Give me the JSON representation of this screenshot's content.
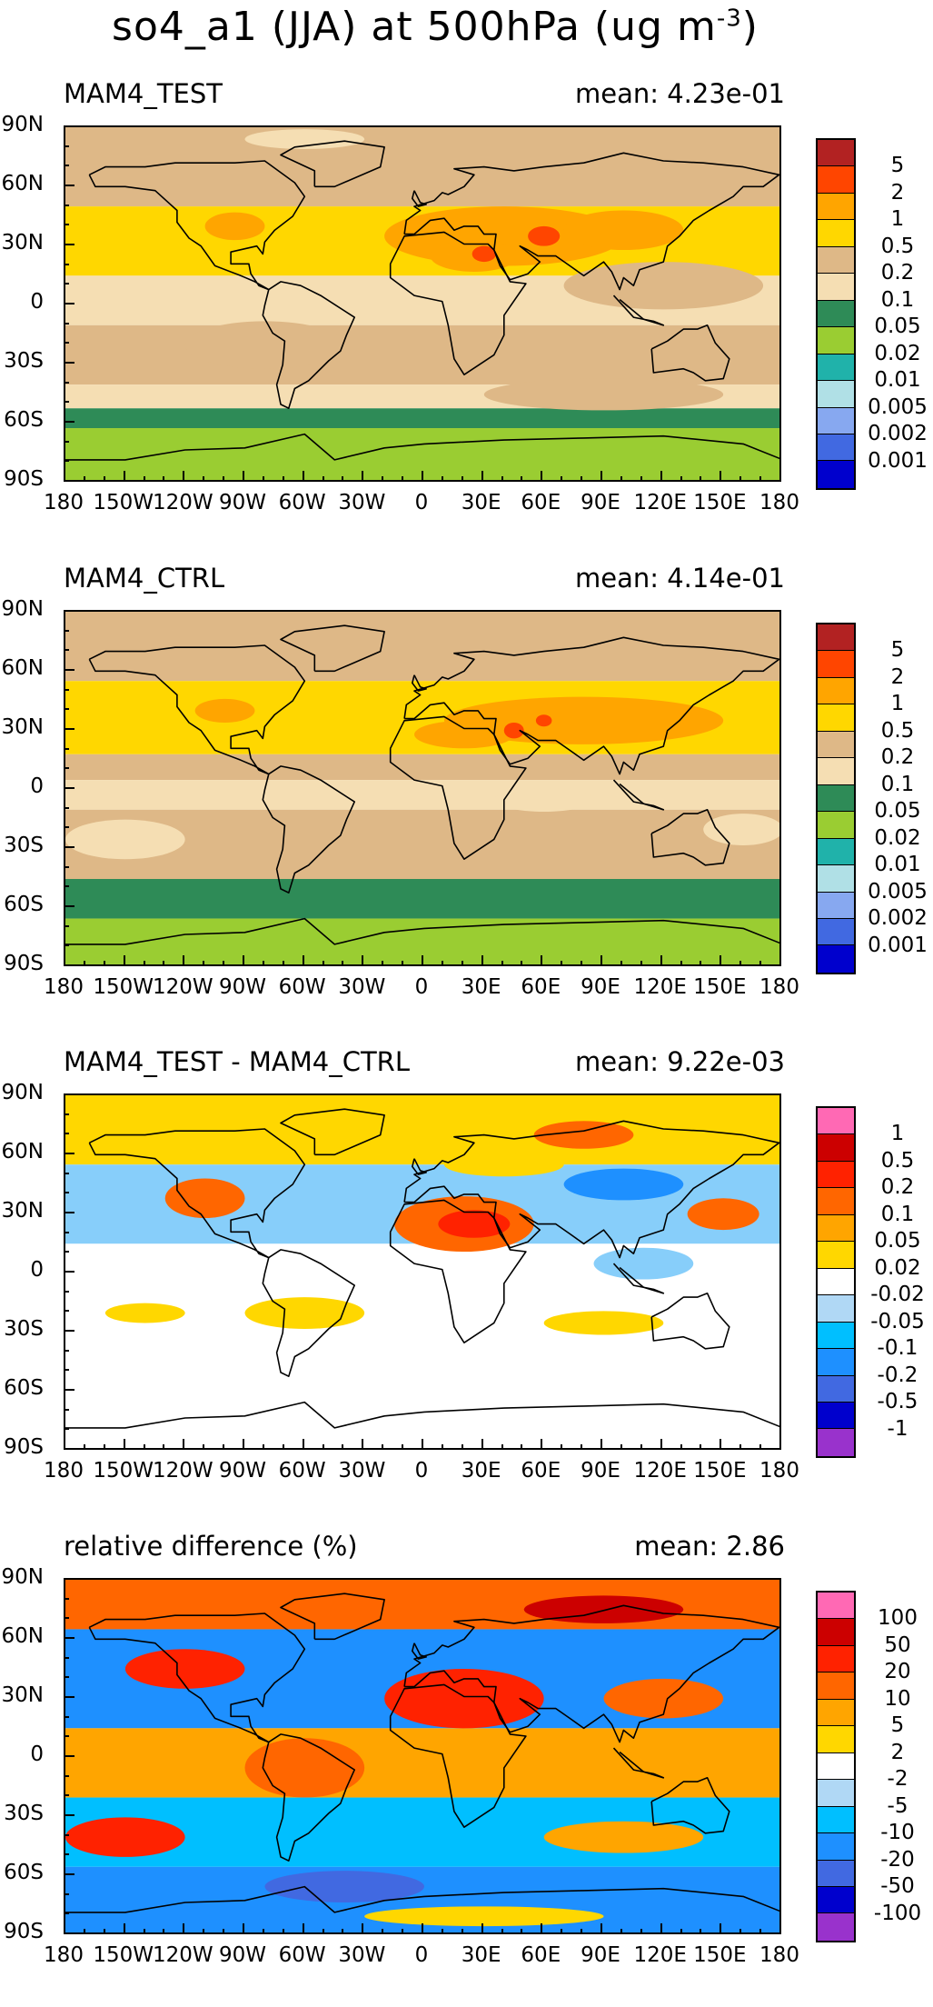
{
  "title": "so4_a1 (JJA) at 500hPa (ug m",
  "title_exponent": "-3",
  "title_close": ")",
  "lat_labels": [
    "90N",
    "60N",
    "30N",
    "0",
    "30S",
    "60S",
    "90S"
  ],
  "lon_labels": [
    "180",
    "150W",
    "120W",
    "90W",
    "60W",
    "30W",
    "0",
    "30E",
    "60E",
    "90E",
    "120E",
    "150E",
    "180"
  ],
  "panels": [
    {
      "title": "MAM4_TEST",
      "mean_label": "mean:",
      "mean_value": "4.23e-01",
      "colorbar": {
        "labels": [
          "5",
          "2",
          "1",
          "0.5",
          "0.2",
          "0.1",
          "0.05",
          "0.02",
          "0.01",
          "0.005",
          "0.002",
          "0.001"
        ],
        "colors": [
          "#b22222",
          "#ff4500",
          "#ffa500",
          "#ffd700",
          "#deb887",
          "#f5deb3",
          "#2e8b57",
          "#9acd32",
          "#20b2aa",
          "#b0e0e6",
          "#87a8f0",
          "#4169e1",
          "#0000cd"
        ]
      },
      "bands": [
        {
          "lat_top": 90,
          "lat_bottom": 50,
          "color": "#deb887"
        },
        {
          "lat_top": 50,
          "lat_bottom": 15,
          "color": "#ffd700"
        },
        {
          "lat_top": 15,
          "lat_bottom": -10,
          "color": "#f5deb3"
        },
        {
          "lat_top": -10,
          "lat_bottom": -40,
          "color": "#deb887"
        },
        {
          "lat_top": -40,
          "lat_bottom": -52,
          "color": "#f5deb3"
        },
        {
          "lat_top": -52,
          "lat_bottom": -62,
          "color": "#2e8b57"
        },
        {
          "lat_top": -62,
          "lat_bottom": -90,
          "color": "#9acd32"
        }
      ],
      "blobs": [
        {
          "lon": 40,
          "lat": 35,
          "rlon": 60,
          "rlat": 15,
          "color": "#ffa500"
        },
        {
          "lon": 100,
          "lat": 38,
          "rlon": 30,
          "rlat": 10,
          "color": "#ffa500"
        },
        {
          "lon": 25,
          "lat": 25,
          "rlon": 22,
          "rlat": 8,
          "color": "#ffa500"
        },
        {
          "lon": -95,
          "lat": 40,
          "rlon": 15,
          "rlat": 7,
          "color": "#ffa500"
        },
        {
          "lon": 60,
          "lat": 35,
          "rlon": 8,
          "rlat": 5,
          "color": "#ff4500"
        },
        {
          "lon": 30,
          "lat": 26,
          "rlon": 6,
          "rlat": 4,
          "color": "#ff4500"
        },
        {
          "lon": 120,
          "lat": 10,
          "rlon": 50,
          "rlat": 12,
          "color": "#deb887"
        },
        {
          "lon": -80,
          "lat": -20,
          "rlon": 40,
          "rlat": 12,
          "color": "#deb887"
        },
        {
          "lon": 90,
          "lat": -45,
          "rlon": 60,
          "rlat": 8,
          "color": "#deb887"
        },
        {
          "lon": -60,
          "lat": 84,
          "rlon": 30,
          "rlat": 5,
          "color": "#f5deb3"
        }
      ]
    },
    {
      "title": "MAM4_CTRL",
      "mean_label": "mean:",
      "mean_value": "4.14e-01",
      "colorbar": {
        "labels": [
          "5",
          "2",
          "1",
          "0.5",
          "0.2",
          "0.1",
          "0.05",
          "0.02",
          "0.01",
          "0.005",
          "0.002",
          "0.001"
        ],
        "colors": [
          "#b22222",
          "#ff4500",
          "#ffa500",
          "#ffd700",
          "#deb887",
          "#f5deb3",
          "#2e8b57",
          "#9acd32",
          "#20b2aa",
          "#b0e0e6",
          "#87a8f0",
          "#4169e1",
          "#0000cd"
        ]
      },
      "bands": [
        {
          "lat_top": 90,
          "lat_bottom": 55,
          "color": "#deb887"
        },
        {
          "lat_top": 55,
          "lat_bottom": 18,
          "color": "#ffd700"
        },
        {
          "lat_top": 18,
          "lat_bottom": 5,
          "color": "#deb887"
        },
        {
          "lat_top": 5,
          "lat_bottom": -10,
          "color": "#f5deb3"
        },
        {
          "lat_top": -10,
          "lat_bottom": -45,
          "color": "#deb887"
        },
        {
          "lat_top": -45,
          "lat_bottom": -65,
          "color": "#2e8b57"
        },
        {
          "lat_top": -65,
          "lat_bottom": -90,
          "color": "#9acd32"
        }
      ],
      "blobs": [
        {
          "lon": 80,
          "lat": 35,
          "rlon": 70,
          "rlat": 12,
          "color": "#ffa500"
        },
        {
          "lon": 20,
          "lat": 28,
          "rlon": 25,
          "rlat": 7,
          "color": "#ffa500"
        },
        {
          "lon": -100,
          "lat": 40,
          "rlon": 15,
          "rlat": 6,
          "color": "#ffa500"
        },
        {
          "lon": 45,
          "lat": 30,
          "rlon": 5,
          "rlat": 4,
          "color": "#ff4500"
        },
        {
          "lon": 60,
          "lat": 35,
          "rlon": 4,
          "rlat": 3,
          "color": "#ff4500"
        },
        {
          "lon": -150,
          "lat": -25,
          "rlon": 30,
          "rlat": 10,
          "color": "#f5deb3"
        },
        {
          "lon": 60,
          "lat": -5,
          "rlon": 25,
          "rlat": 6,
          "color": "#f5deb3"
        },
        {
          "lon": 160,
          "lat": -20,
          "rlon": 20,
          "rlat": 8,
          "color": "#f5deb3"
        }
      ]
    },
    {
      "title": "MAM4_TEST - MAM4_CTRL",
      "mean_label": "mean:",
      "mean_value": "9.22e-03",
      "colorbar": {
        "labels": [
          "1",
          "0.5",
          "0.2",
          "0.1",
          "0.05",
          "0.02",
          "-0.02",
          "-0.05",
          "-0.1",
          "-0.2",
          "-0.5",
          "-1"
        ],
        "colors": [
          "#ff69b4",
          "#cc0000",
          "#ff2200",
          "#ff6600",
          "#ffa500",
          "#ffd700",
          "#ffffff",
          "#b0d8f5",
          "#00bfff",
          "#1e90ff",
          "#4169e1",
          "#0000cd",
          "#9932cc"
        ]
      },
      "bands": [
        {
          "lat_top": 90,
          "lat_bottom": 55,
          "color": "#ffd700"
        },
        {
          "lat_top": 55,
          "lat_bottom": 15,
          "color": "#87cefa"
        },
        {
          "lat_top": 15,
          "lat_bottom": -90,
          "color": "#ffffff"
        }
      ],
      "blobs": [
        {
          "lon": 20,
          "lat": 25,
          "rlon": 35,
          "rlat": 14,
          "color": "#ff6600"
        },
        {
          "lon": 25,
          "lat": 25,
          "rlon": 18,
          "rlat": 7,
          "color": "#ff2200"
        },
        {
          "lon": -110,
          "lat": 38,
          "rlon": 20,
          "rlat": 10,
          "color": "#ff6600"
        },
        {
          "lon": 150,
          "lat": 30,
          "rlon": 18,
          "rlat": 8,
          "color": "#ff6600"
        },
        {
          "lon": 100,
          "lat": 45,
          "rlon": 30,
          "rlat": 8,
          "color": "#1e90ff"
        },
        {
          "lon": 80,
          "lat": 70,
          "rlon": 25,
          "rlat": 7,
          "color": "#ff6600"
        },
        {
          "lon": -60,
          "lat": -20,
          "rlon": 30,
          "rlat": 8,
          "color": "#ffd700"
        },
        {
          "lon": 90,
          "lat": -25,
          "rlon": 30,
          "rlat": 6,
          "color": "#ffd700"
        },
        {
          "lon": 110,
          "lat": 5,
          "rlon": 25,
          "rlat": 8,
          "color": "#87cefa"
        },
        {
          "lon": -140,
          "lat": -20,
          "rlon": 20,
          "rlat": 5,
          "color": "#ffd700"
        },
        {
          "lon": 40,
          "lat": 55,
          "rlon": 30,
          "rlat": 6,
          "color": "#ffd700"
        }
      ]
    },
    {
      "title": "relative difference (%)",
      "mean_label": "mean:",
      "mean_value": "2.86",
      "colorbar": {
        "labels": [
          "100",
          "50",
          "20",
          "10",
          "5",
          "2",
          "-2",
          "-5",
          "-10",
          "-20",
          "-50",
          "-100"
        ],
        "colors": [
          "#ff69b4",
          "#cc0000",
          "#ff2200",
          "#ff6600",
          "#ffa500",
          "#ffd700",
          "#ffffff",
          "#b0d8f5",
          "#00bfff",
          "#1e90ff",
          "#4169e1",
          "#0000cd",
          "#9932cc"
        ]
      },
      "bands": [
        {
          "lat_top": 90,
          "lat_bottom": 65,
          "color": "#ff6600"
        },
        {
          "lat_top": 65,
          "lat_bottom": 15,
          "color": "#1e90ff"
        },
        {
          "lat_top": 15,
          "lat_bottom": -20,
          "color": "#ffa500"
        },
        {
          "lat_top": -20,
          "lat_bottom": -55,
          "color": "#00bfff"
        },
        {
          "lat_top": -55,
          "lat_bottom": -90,
          "color": "#1e90ff"
        }
      ],
      "blobs": [
        {
          "lon": 20,
          "lat": 30,
          "rlon": 40,
          "rlat": 15,
          "color": "#ff2200"
        },
        {
          "lon": -120,
          "lat": 45,
          "rlon": 30,
          "rlat": 10,
          "color": "#ff2200"
        },
        {
          "lon": 90,
          "lat": 75,
          "rlon": 40,
          "rlat": 7,
          "color": "#cc0000"
        },
        {
          "lon": -150,
          "lat": -40,
          "rlon": 30,
          "rlat": 10,
          "color": "#ff2200"
        },
        {
          "lon": -60,
          "lat": -5,
          "rlon": 30,
          "rlat": 15,
          "color": "#ff6600"
        },
        {
          "lon": 100,
          "lat": -40,
          "rlon": 40,
          "rlat": 8,
          "color": "#ffa500"
        },
        {
          "lon": 120,
          "lat": 30,
          "rlon": 30,
          "rlat": 10,
          "color": "#ff6600"
        },
        {
          "lon": -40,
          "lat": -65,
          "rlon": 40,
          "rlat": 8,
          "color": "#4169e1"
        },
        {
          "lon": 30,
          "lat": -80,
          "rlon": 60,
          "rlat": 5,
          "color": "#ffd700"
        }
      ]
    }
  ]
}
